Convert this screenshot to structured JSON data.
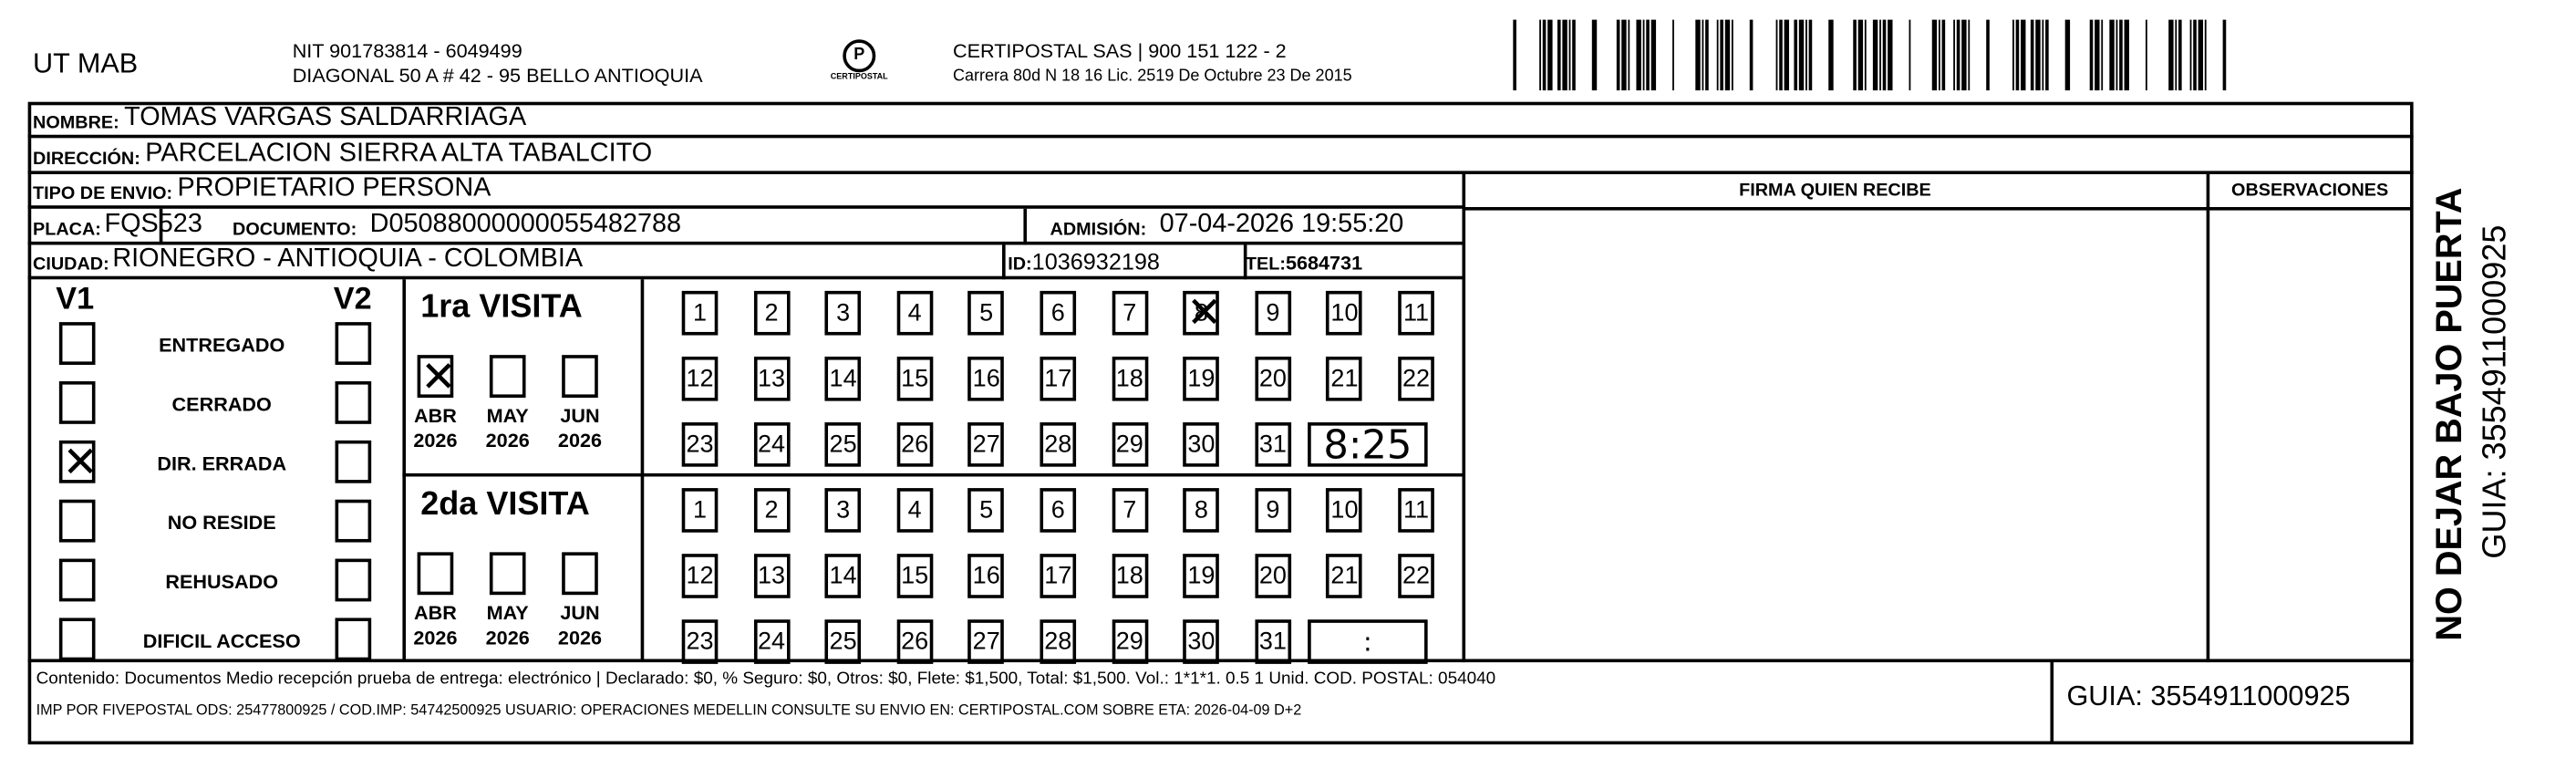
{
  "header": {
    "company": "UT MAB",
    "nit": "NIT 901783814 - 6049499",
    "address": "DIAGONAL 50 A # 42 - 95  BELLO  ANTIOQUIA",
    "logo_text": "CERTIPOSTAL",
    "carrier": "CERTIPOSTAL SAS | 900 151 122 - 2",
    "license": "Carrera 80d N 18 16  Lic. 2519 De Octubre 23 De 2015"
  },
  "fields": {
    "nombre_label": "NOMBRE:",
    "nombre": "TOMAS VARGAS SALDARRIAGA",
    "direccion_label": "DIRECCIÓN:",
    "direccion": "PARCELACION SIERRA ALTA TABALCITO",
    "tipo_label": "TIPO DE ENVIO:",
    "tipo": "PROPIETARIO PERSONA",
    "placa_label": "PLACA:",
    "placa": "FQS523",
    "documento_label": "DOCUMENTO:",
    "documento": "D05088000000055482788",
    "admision_label": "ADMISIÓN:",
    "admision": "07-04-2026 19:55:20",
    "ciudad_label": "CIUDAD:",
    "ciudad": "RIONEGRO - ANTIOQUIA - COLOMBIA",
    "id_label": "ID:",
    "id": "1036932198",
    "tel_label": "TEL:",
    "tel": "5684731"
  },
  "signature": {
    "firma_label": "FIRMA QUIEN RECIBE",
    "observaciones_label": "OBSERVACIONES"
  },
  "status": {
    "v1_label": "V1",
    "v2_label": "V2",
    "options": [
      {
        "label": "ENTREGADO",
        "v1": false,
        "v2": false
      },
      {
        "label": "CERRADO",
        "v1": false,
        "v2": false
      },
      {
        "label": "DIR. ERRADA",
        "v1": true,
        "v2": false
      },
      {
        "label": "NO RESIDE",
        "v1": false,
        "v2": false
      },
      {
        "label": "REHUSADO",
        "v1": false,
        "v2": false
      },
      {
        "label": "DIFICIL ACCESO",
        "v1": false,
        "v2": false
      }
    ]
  },
  "visits": [
    {
      "title": "1ra VISITA",
      "months": [
        {
          "label": "ABR",
          "year": "2026",
          "checked": true
        },
        {
          "label": "MAY",
          "year": "2026",
          "checked": false
        },
        {
          "label": "JUN",
          "year": "2026",
          "checked": false
        }
      ],
      "checked_day": 8,
      "time": "8:25"
    },
    {
      "title": "2da VISITA",
      "months": [
        {
          "label": "ABR",
          "year": "2026",
          "checked": false
        },
        {
          "label": "MAY",
          "year": "2026",
          "checked": false
        },
        {
          "label": "JUN",
          "year": "2026",
          "checked": false
        }
      ],
      "checked_day": null,
      "time": ":"
    }
  ],
  "footer": {
    "line1": "Contenido: Documentos Medio recepción prueba de entrega: electrónico | Declarado: $0, % Seguro: $0, Otros: $0, Flete: $1,500, Total: $1,500. Vol.: 1*1*1. 0.5  1 Unid. COD. POSTAL: 054040",
    "line2": "IMP POR FIVEPOSTAL ODS: 25477800925 / COD.IMP: 54742500925 USUARIO: OPERACIONES MEDELLIN CONSULTE SU ENVIO EN: CERTIPOSTAL.COM SOBRE ETA: 2026-04-09 D+2",
    "guia": "GUIA: 3554911000925"
  },
  "side": {
    "warning": "NO DEJAR BAJO PUERTA",
    "guia": "GUIA: 3554911000925"
  }
}
